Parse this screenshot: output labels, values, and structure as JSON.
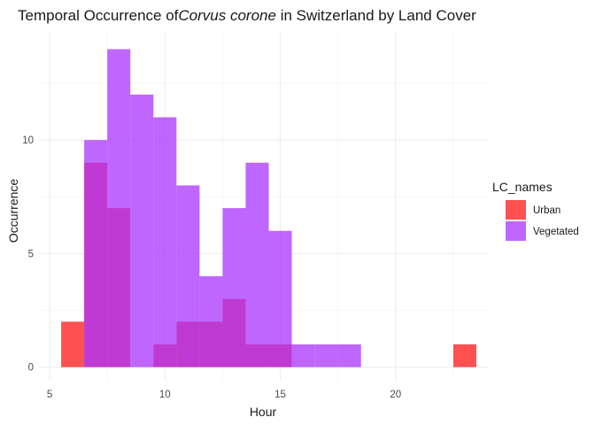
{
  "chart_data": {
    "type": "bar",
    "title_prefix": "Temporal Occurrence of",
    "title_italic": "Corvus corone",
    "title_suffix": " in Switzerland by Land Cover",
    "xlabel": "Hour",
    "ylabel": "Occurrence",
    "xlim": [
      4.5,
      24
    ],
    "ylim": [
      -0.6,
      14.8
    ],
    "xticks": [
      5,
      10,
      15,
      20
    ],
    "yticks": [
      0,
      5,
      10
    ],
    "grid": true,
    "bin_width": 1,
    "legend": {
      "title": "LC_names",
      "placement": "right",
      "entries": [
        {
          "name": "Urban",
          "color": "#ff3333",
          "opacity": 0.85
        },
        {
          "name": "Vegetated",
          "color": "#a933ff",
          "opacity": 0.75
        }
      ]
    },
    "series": [
      {
        "name": "Urban",
        "color": "#ff3333",
        "bins": [
          {
            "x": 6,
            "value": 2
          },
          {
            "x": 7,
            "value": 9
          },
          {
            "x": 8,
            "value": 7
          },
          {
            "x": 10,
            "value": 1
          },
          {
            "x": 11,
            "value": 2
          },
          {
            "x": 12,
            "value": 2
          },
          {
            "x": 13,
            "value": 3
          },
          {
            "x": 14,
            "value": 1
          },
          {
            "x": 15,
            "value": 1
          },
          {
            "x": 23,
            "value": 1
          }
        ]
      },
      {
        "name": "Vegetated",
        "color": "#a933ff",
        "bins": [
          {
            "x": 7,
            "value": 10
          },
          {
            "x": 8,
            "value": 14
          },
          {
            "x": 9,
            "value": 12
          },
          {
            "x": 10,
            "value": 11
          },
          {
            "x": 11,
            "value": 8
          },
          {
            "x": 12,
            "value": 4
          },
          {
            "x": 13,
            "value": 7
          },
          {
            "x": 14,
            "value": 9
          },
          {
            "x": 15,
            "value": 6
          },
          {
            "x": 16,
            "value": 1
          },
          {
            "x": 17,
            "value": 1
          },
          {
            "x": 18,
            "value": 1
          }
        ]
      }
    ]
  }
}
